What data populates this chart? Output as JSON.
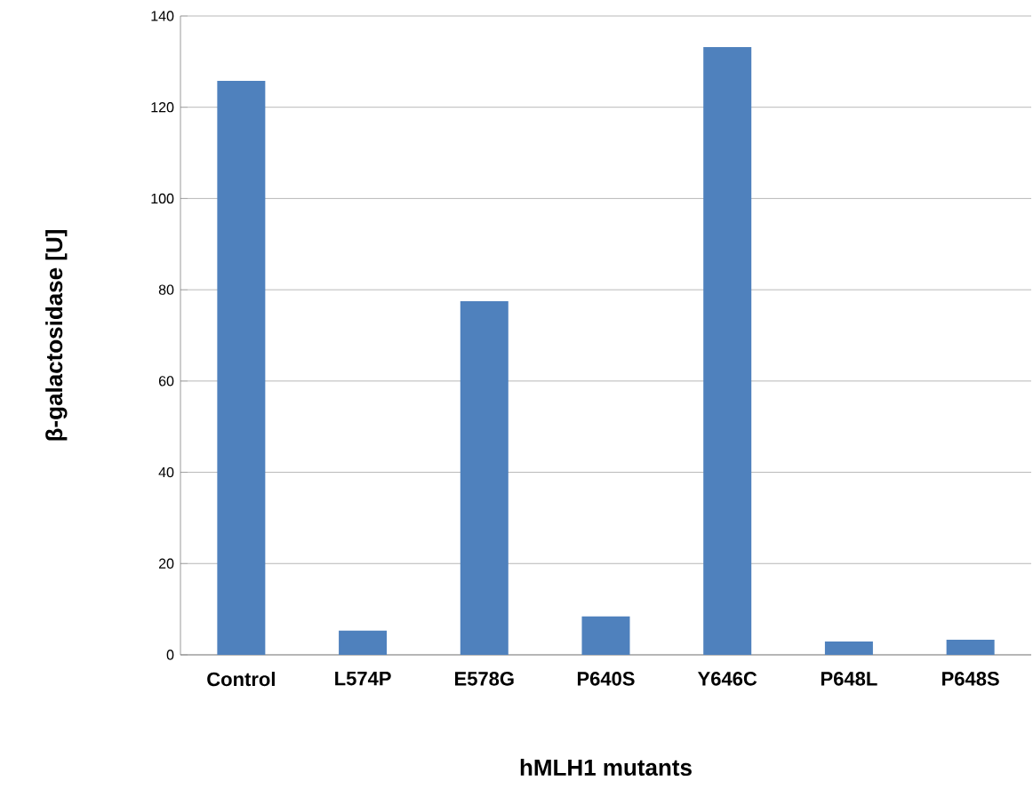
{
  "chart_data": {
    "type": "bar",
    "xlabel": "hMLH1 mutants",
    "ylabel": "β-galactosidase [U]",
    "categories": [
      "Control",
      "L574P",
      "E578G",
      "P640S",
      "Y646C",
      "P648L",
      "P648S"
    ],
    "values": [
      125.8,
      5.3,
      77.5,
      8.4,
      133.2,
      2.9,
      3.3
    ],
    "color": "#4f81bd",
    "ylim": [
      0,
      140
    ],
    "yticks": [
      0,
      20,
      40,
      60,
      80,
      100,
      120,
      140
    ],
    "grid": "y"
  }
}
